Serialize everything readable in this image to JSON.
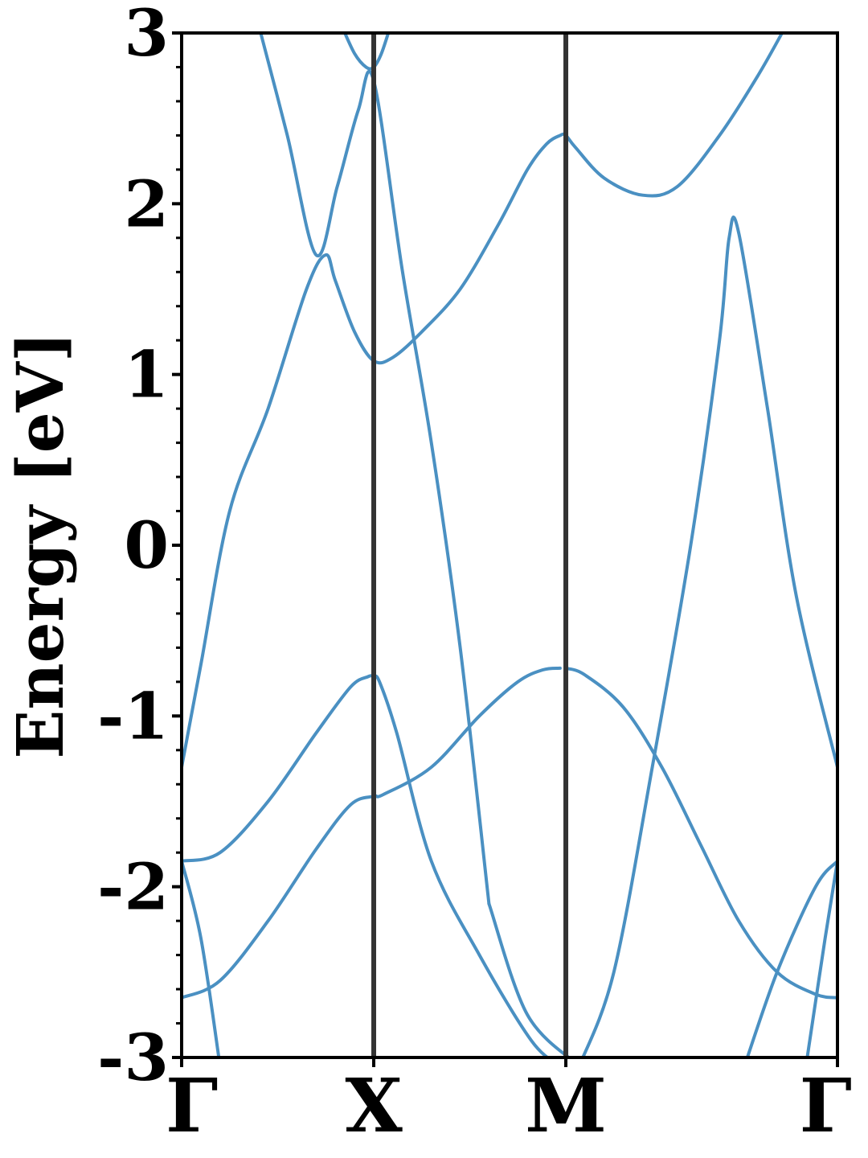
{
  "chart_data": {
    "type": "line",
    "title": "",
    "xlabel": "",
    "ylabel": "Energy [eV]",
    "ylim": [
      -3,
      3
    ],
    "xlim": [
      0,
      3.414
    ],
    "grid": false,
    "legend": "none",
    "line_color": "#4a90c2",
    "divider_color": "#333333",
    "y_ticks": [
      -3,
      -2,
      -1,
      0,
      1,
      2,
      3
    ],
    "y_tick_labels": [
      "-3",
      "-2",
      "-1",
      "0",
      "1",
      "2",
      "3"
    ],
    "k_points": [
      {
        "label": "Γ",
        "x": 0
      },
      {
        "label": "X",
        "x": 1.0
      },
      {
        "label": "M",
        "x": 2.0
      },
      {
        "label": "Γ",
        "x": 3.414
      }
    ],
    "series": [
      {
        "x": [
          0,
          0.2,
          0.45,
          0.7,
          0.88,
          1.0,
          1.05,
          1.3,
          1.55,
          1.75,
          1.88,
          1.97
        ],
        "values": [
          -2.65,
          -2.55,
          -2.2,
          -1.78,
          -1.52,
          -1.47,
          -1.46,
          -1.3,
          -1.0,
          -0.8,
          -0.73,
          -0.72
        ]
      },
      {
        "x": [
          2.0,
          2.1,
          2.3,
          2.5,
          2.7,
          2.9,
          3.1,
          3.3,
          3.414
        ],
        "values": [
          -0.72,
          -0.76,
          -0.95,
          -1.3,
          -1.75,
          -2.2,
          -2.5,
          -2.63,
          -2.65
        ]
      },
      {
        "x": [
          0,
          0.2,
          0.45,
          0.7,
          0.88,
          0.97,
          1.0,
          1.03,
          1.12,
          1.3,
          1.55,
          1.82,
          1.97
        ],
        "values": [
          -1.85,
          -1.8,
          -1.5,
          -1.1,
          -0.83,
          -0.77,
          -0.77,
          -0.8,
          -1.1,
          -1.85,
          -2.4,
          -2.9,
          -3.05
        ]
      },
      {
        "x": [
          2.07,
          2.25,
          2.45,
          2.65,
          2.8,
          2.85,
          2.9,
          3.05,
          3.2,
          3.414
        ],
        "values": [
          -3.05,
          -2.5,
          -1.3,
          0.0,
          1.2,
          1.8,
          1.83,
          0.8,
          -0.3,
          -1.3
        ]
      },
      {
        "x": [
          0,
          0.1,
          0.25,
          0.45,
          0.65,
          0.75,
          0.8,
          0.9,
          1.0,
          1.1,
          1.25,
          1.45,
          1.65,
          1.8,
          1.9,
          1.97,
          2.0,
          2.05,
          2.2,
          2.4,
          2.58,
          2.8,
          3.0,
          3.15
        ],
        "values": [
          -1.3,
          -0.7,
          0.2,
          0.8,
          1.5,
          1.7,
          1.55,
          1.25,
          1.08,
          1.1,
          1.25,
          1.5,
          1.88,
          2.2,
          2.35,
          2.4,
          2.4,
          2.33,
          2.15,
          2.05,
          2.1,
          2.4,
          2.75,
          3.05
        ]
      },
      {
        "x": [
          0.4,
          0.55,
          0.7,
          0.81,
          0.92,
          1.0,
          1.15,
          1.3,
          1.45,
          1.6
        ],
        "values": [
          3.05,
          2.4,
          1.7,
          2.1,
          2.55,
          2.72,
          1.6,
          0.6,
          -0.6,
          -2.1
        ]
      },
      {
        "x": [
          0.83,
          0.9,
          0.96,
          1.0,
          1.04,
          1.09
        ],
        "values": [
          3.05,
          2.88,
          2.8,
          2.8,
          2.88,
          3.05
        ]
      },
      {
        "x": [
          1.6,
          1.8,
          2.07
        ],
        "values": [
          -2.1,
          -2.75,
          -3.05
        ]
      },
      {
        "x": [
          0,
          0.1,
          0.2
        ],
        "values": [
          -1.85,
          -2.3,
          -3.05
        ]
      },
      {
        "x": [
          3.414,
          3.35,
          3.25
        ],
        "values": [
          -1.85,
          -2.3,
          -3.05
        ]
      },
      {
        "x": [
          3.414,
          3.3,
          3.1,
          2.93
        ],
        "values": [
          -1.85,
          -2.0,
          -2.5,
          -3.05
        ]
      }
    ]
  }
}
